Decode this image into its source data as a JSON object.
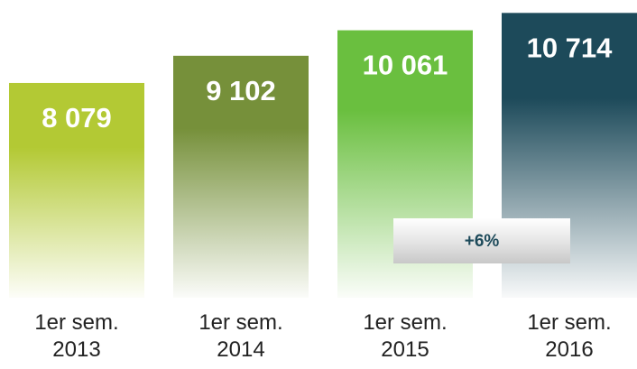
{
  "chart_data": {
    "type": "bar",
    "categories": [
      "1er sem. 2013",
      "1er sem. 2014",
      "1er sem. 2015",
      "1er sem. 2016"
    ],
    "values": [
      8079,
      9102,
      10061,
      10714
    ],
    "value_labels": [
      "8 079",
      "9 102",
      "10 061",
      "10 714"
    ],
    "colors": [
      "#b3c934",
      "#76903a",
      "#6abf3f",
      "#1d4a5a"
    ],
    "ylim": [
      0,
      11200
    ],
    "annotation": "+6%"
  }
}
